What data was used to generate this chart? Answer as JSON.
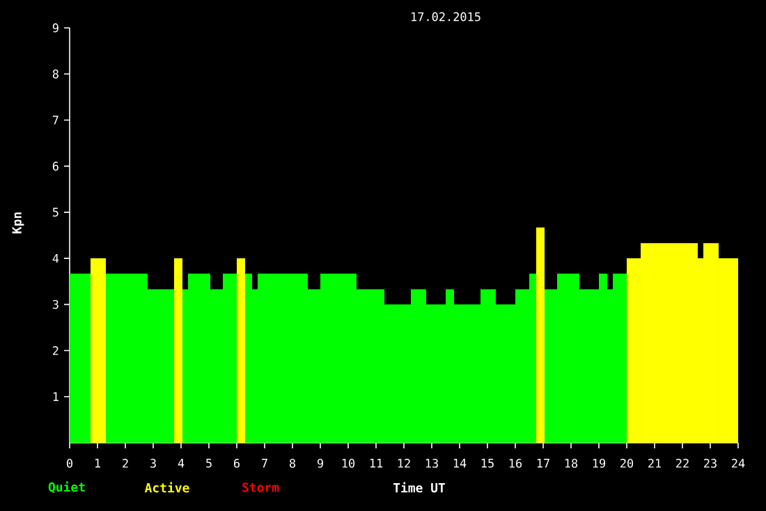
{
  "chart_data": {
    "type": "histogram",
    "title": "17.02.2015",
    "xlabel": "Time UT",
    "ylabel": "Kpn",
    "bins": [
      0,
      0.75,
      1.3,
      2.8,
      3.75,
      4.05,
      4.25,
      5.05,
      5.5,
      6.0,
      6.3,
      6.55,
      6.75,
      8.55,
      9.0,
      10.3,
      11.3,
      12.25,
      12.8,
      13.5,
      13.8,
      14.75,
      15.3,
      16.0,
      16.5,
      16.75,
      17.05,
      17.5,
      18.3,
      19.0,
      19.3,
      19.5,
      20.0,
      20.5,
      22.55,
      22.75,
      23.3,
      24.0
    ],
    "series": [
      {
        "name": "Quiet",
        "color": "#00ff00",
        "values": [
          3.67,
          null,
          3.67,
          3.33,
          null,
          3.33,
          3.67,
          3.33,
          3.67,
          null,
          3.67,
          3.33,
          3.67,
          3.33,
          3.67,
          3.33,
          3.0,
          3.33,
          3.0,
          3.33,
          3.0,
          3.33,
          3.0,
          3.33,
          3.67,
          null,
          3.33,
          3.67,
          3.33,
          3.67,
          3.33,
          3.67,
          null,
          null,
          null,
          null,
          null
        ]
      },
      {
        "name": "Active",
        "color": "#ffff00",
        "values": [
          null,
          4.0,
          null,
          null,
          4.0,
          null,
          null,
          null,
          null,
          4.0,
          null,
          null,
          null,
          null,
          null,
          null,
          null,
          null,
          null,
          null,
          null,
          null,
          null,
          null,
          null,
          4.67,
          null,
          null,
          null,
          null,
          null,
          null,
          4.0,
          4.33,
          4.0,
          4.33,
          4.0
        ]
      }
    ],
    "annotations": [
      "Storm"
    ],
    "xlim": [
      0,
      24
    ],
    "ylim": [
      0,
      9
    ],
    "xticks": [
      0,
      1,
      2,
      3,
      4,
      5,
      6,
      7,
      8,
      9,
      10,
      11,
      12,
      13,
      14,
      15,
      16,
      17,
      18,
      19,
      20,
      21,
      22,
      23,
      24
    ],
    "yticks": [
      1,
      2,
      3,
      4,
      5,
      6,
      7,
      8,
      9
    ],
    "legend": "bottom"
  }
}
